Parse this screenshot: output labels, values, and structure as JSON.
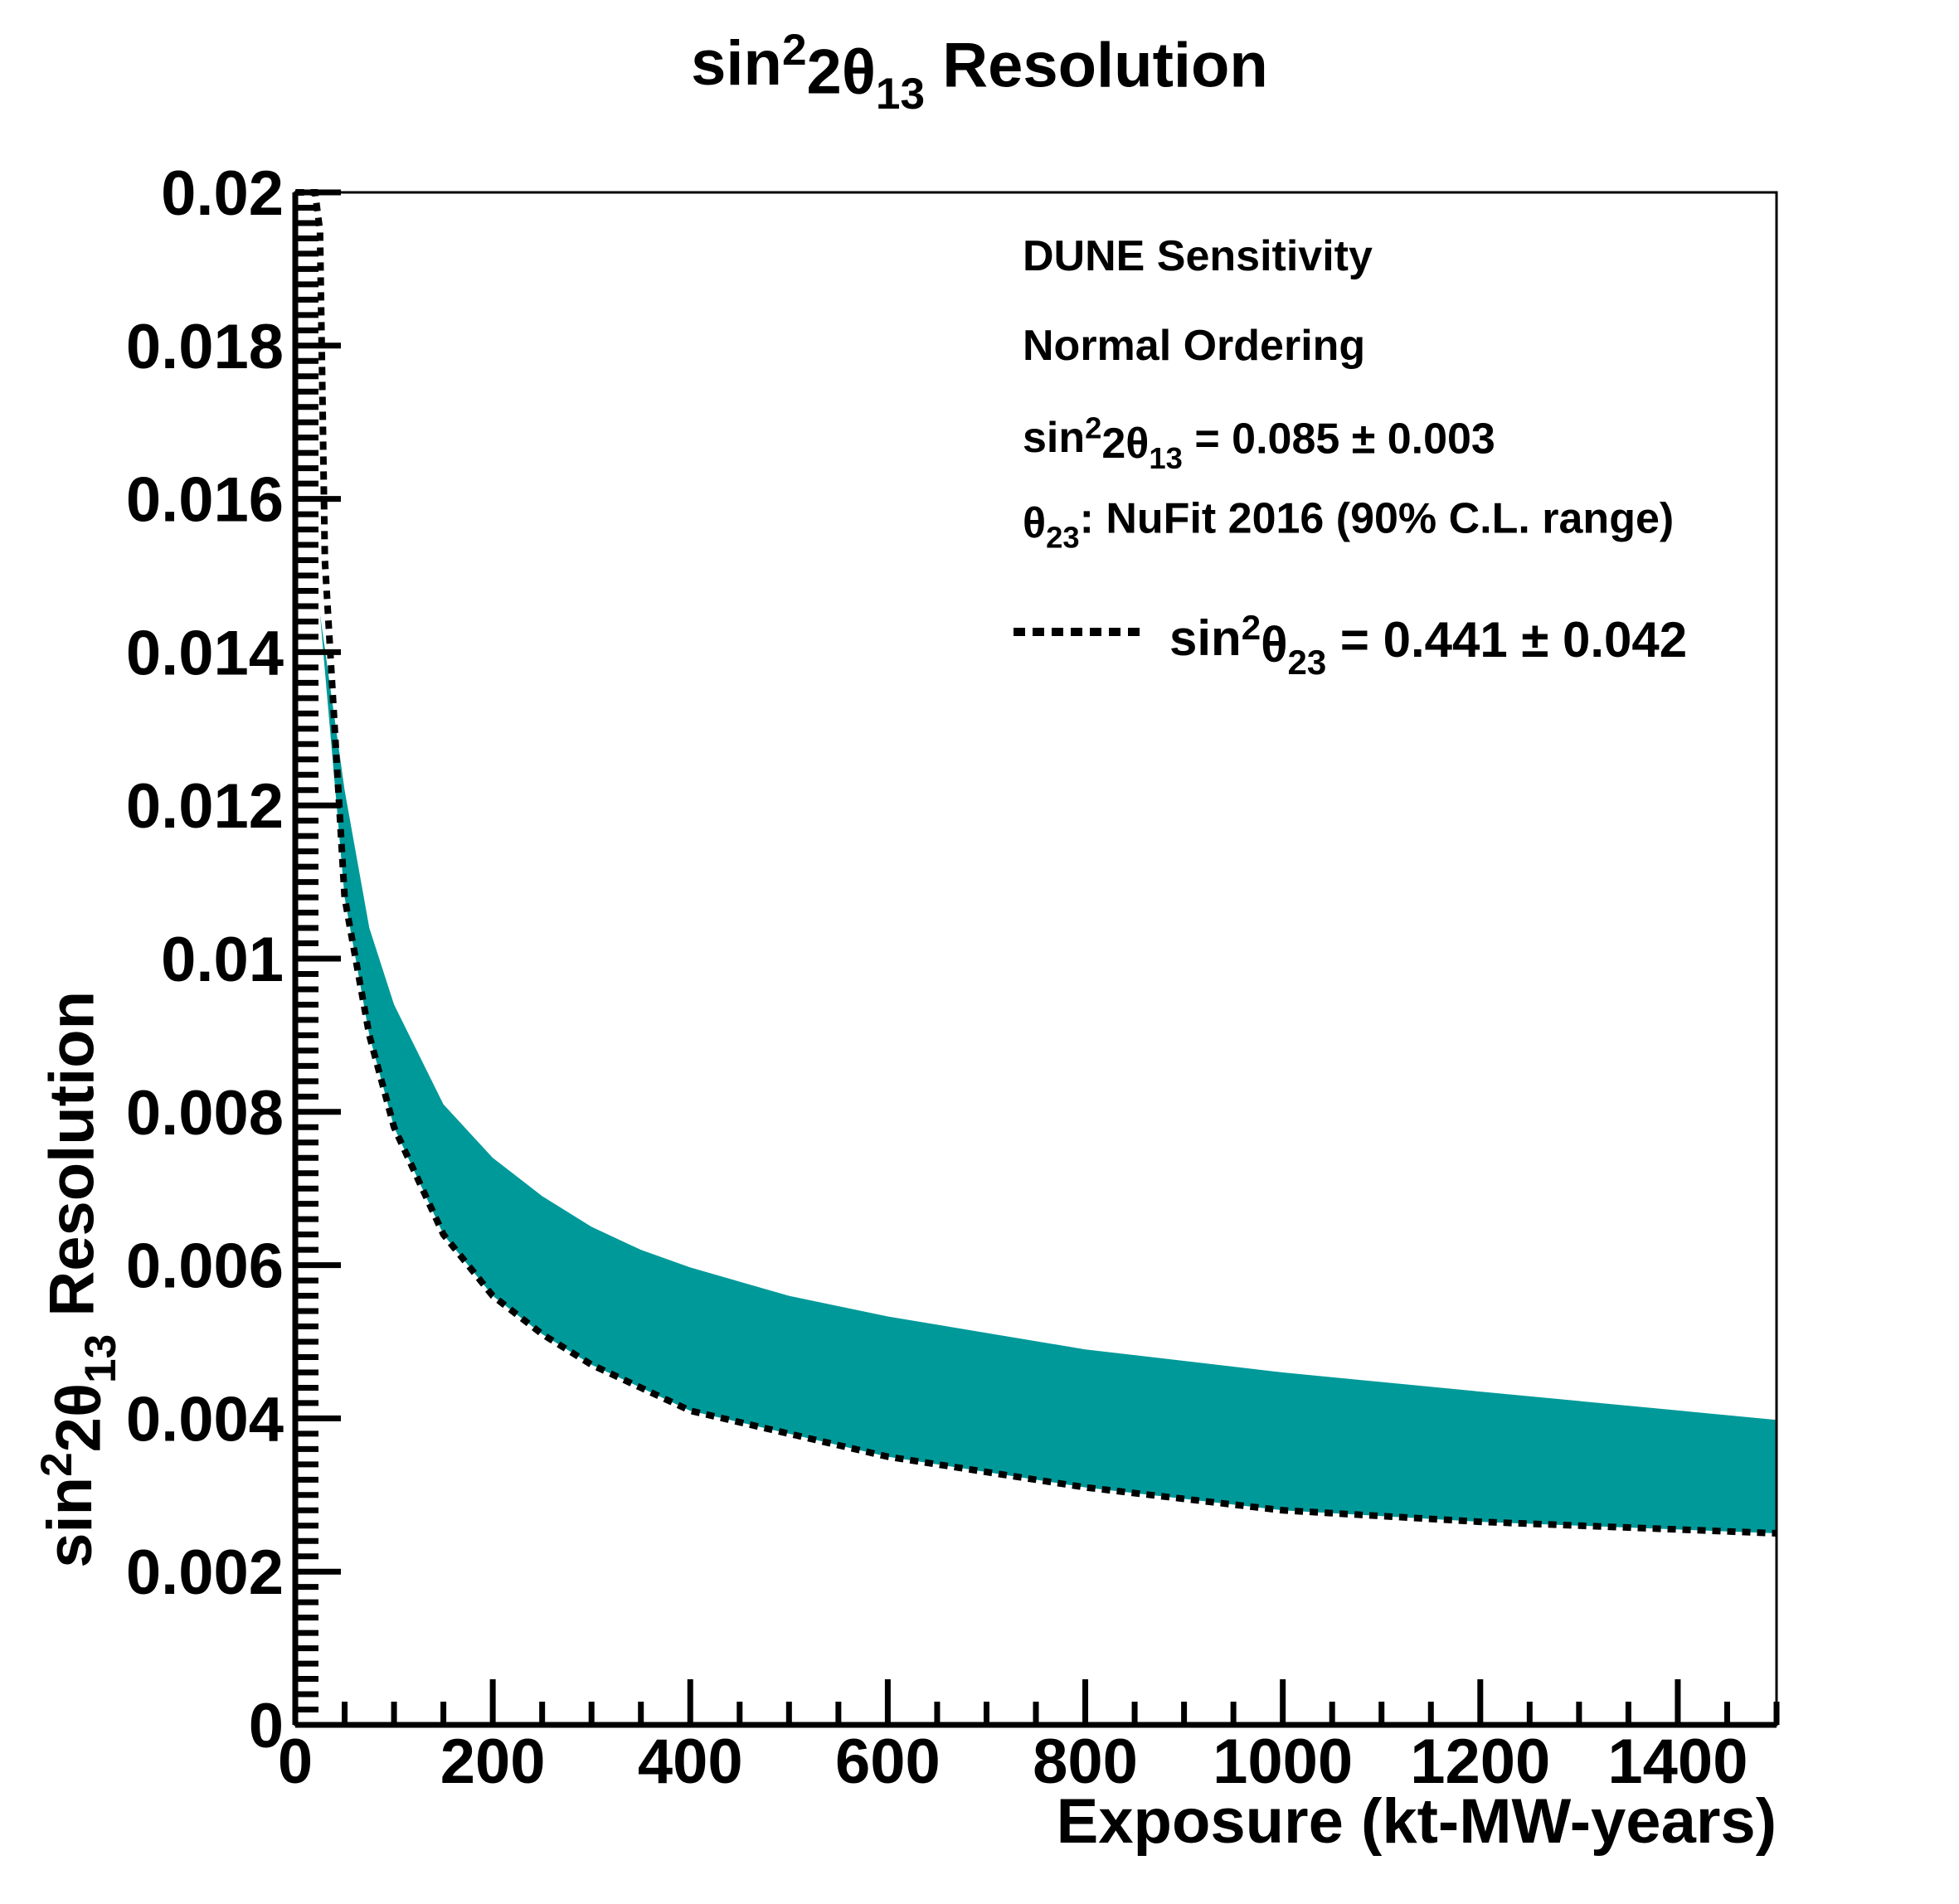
{
  "chart_data": {
    "type": "area",
    "title": {
      "parts": [
        {
          "t": "sin"
        },
        {
          "t": "2",
          "sup": true
        },
        {
          "t": "2θ"
        },
        {
          "t": "13",
          "sub": true
        },
        {
          "t": " Resolution"
        }
      ]
    },
    "xlabel": "Exposure (kt-MW-years)",
    "ylabel": {
      "parts": [
        {
          "t": "sin"
        },
        {
          "t": "2",
          "sup": true
        },
        {
          "t": "2θ"
        },
        {
          "t": "13",
          "sub": true
        },
        {
          "t": " Resolution"
        }
      ]
    },
    "xlim": [
      0,
      1500
    ],
    "ylim": [
      0,
      0.02
    ],
    "x_ticks": [
      "0",
      "200",
      "400",
      "600",
      "800",
      "1000",
      "1200",
      "1400"
    ],
    "x_tick_values": [
      0,
      200,
      400,
      600,
      800,
      1000,
      1200,
      1400
    ],
    "y_ticks": [
      "0",
      "0.002",
      "0.004",
      "0.006",
      "0.008",
      "0.01",
      "0.012",
      "0.014",
      "0.016",
      "0.018",
      "0.02"
    ],
    "y_tick_values": [
      0,
      0.002,
      0.004,
      0.006,
      0.008,
      0.01,
      0.012,
      0.014,
      0.016,
      0.018,
      0.02
    ],
    "band": {
      "color": "#009999",
      "x": [
        25,
        50,
        75,
        100,
        150,
        200,
        250,
        300,
        350,
        400,
        500,
        600,
        800,
        1000,
        1200,
        1500
      ],
      "upper": [
        0.0145,
        0.0122,
        0.0104,
        0.0094,
        0.0081,
        0.0074,
        0.0069,
        0.0065,
        0.0062,
        0.00597,
        0.0056,
        0.00533,
        0.0049,
        0.0046,
        0.00435,
        0.00398
      ],
      "lower": [
        0.0145,
        0.0108,
        0.009,
        0.0078,
        0.0064,
        0.0056,
        0.0051,
        0.0047,
        0.0044,
        0.0041,
        0.0038,
        0.0035,
        0.0031,
        0.0028,
        0.00265,
        0.0025
      ]
    },
    "series": [
      {
        "name": "sin²θ₂₃ = 0.441 ± 0.042",
        "style": "dotted",
        "color": "#000000",
        "x": [
          0.5,
          10,
          20,
          25,
          30,
          50,
          75,
          100,
          150,
          200,
          250,
          300,
          350,
          400,
          500,
          600,
          800,
          1000,
          1200,
          1500
        ],
        "values": [
          0.02,
          0.02,
          0.02,
          0.0195,
          0.0152,
          0.0108,
          0.009,
          0.0078,
          0.0064,
          0.0056,
          0.0051,
          0.0047,
          0.0044,
          0.0041,
          0.0038,
          0.0035,
          0.0031,
          0.0028,
          0.00265,
          0.0025
        ]
      }
    ],
    "annotations": {
      "line1": "DUNE Sensitivity",
      "line2": "Normal Ordering",
      "line3": {
        "parts": [
          {
            "t": "sin"
          },
          {
            "t": "2",
            "sup": true
          },
          {
            "t": "2θ"
          },
          {
            "t": "13",
            "sub": true
          },
          {
            "t": " = 0.085 ± 0.003"
          }
        ]
      },
      "line4": {
        "parts": [
          {
            "t": "θ"
          },
          {
            "t": "23",
            "sub": true
          },
          {
            "t": ": NuFit 2016 (90% C.L. range)"
          }
        ]
      }
    },
    "legend": {
      "placement": "top-right",
      "entry": {
        "parts": [
          {
            "t": "sin"
          },
          {
            "t": "2",
            "sup": true
          },
          {
            "t": "θ"
          },
          {
            "t": "23",
            "sub": true
          },
          {
            "t": " = 0.441 ± 0.042"
          }
        ]
      }
    }
  }
}
